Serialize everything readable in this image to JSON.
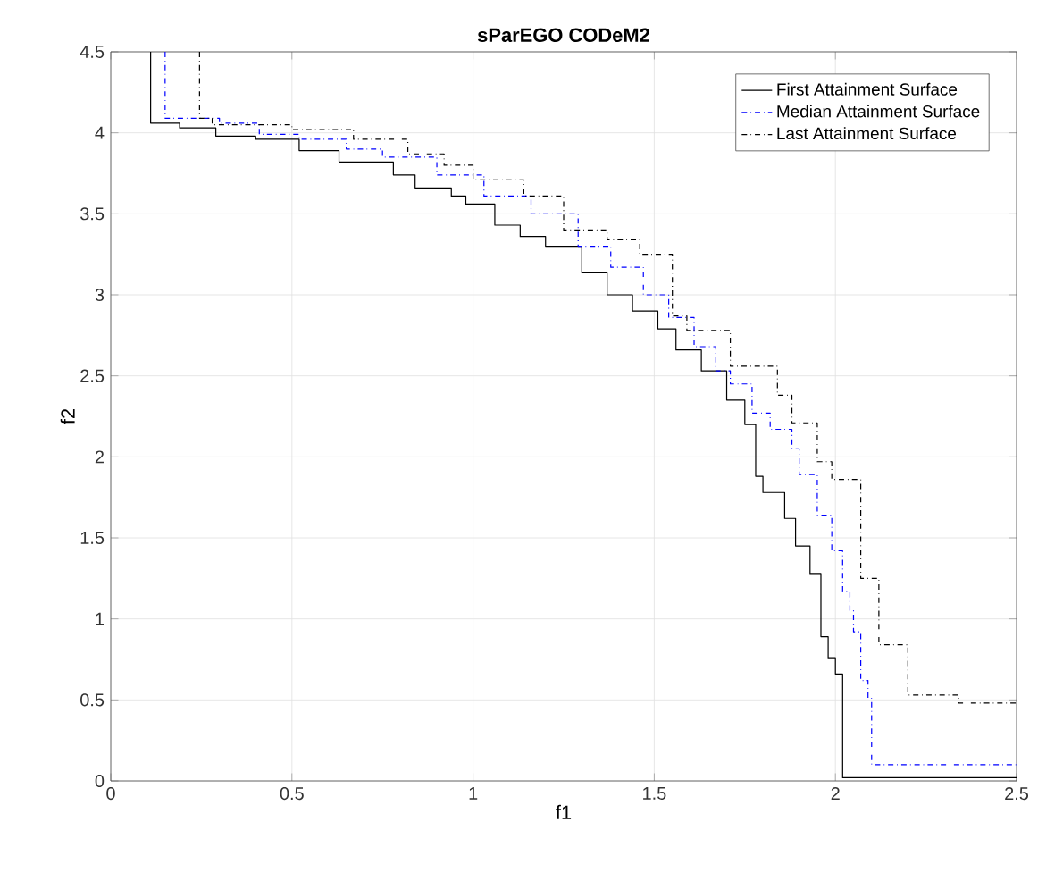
{
  "chart_data": {
    "type": "step",
    "title": "sParEGO CODeM2",
    "xlabel": "f1",
    "ylabel": "f2",
    "xlim": [
      0,
      2.5
    ],
    "ylim": [
      0,
      4.5
    ],
    "xticks": [
      0,
      0.5,
      1,
      1.5,
      2,
      2.5
    ],
    "yticks": [
      0,
      0.5,
      1,
      1.5,
      2,
      2.5,
      3,
      3.5,
      4,
      4.5
    ],
    "grid": true,
    "legend": "top right",
    "series": [
      {
        "name": "First Attainment Surface",
        "color": "#000000",
        "line_style": "solid",
        "x": [
          0.11,
          0.11,
          0.19,
          0.29,
          0.4,
          0.52,
          0.63,
          0.78,
          0.84,
          0.94,
          0.98,
          1.06,
          1.13,
          1.2,
          1.3,
          1.37,
          1.44,
          1.51,
          1.56,
          1.63,
          1.7,
          1.75,
          1.78,
          1.8,
          1.86,
          1.89,
          1.93,
          1.96,
          1.98,
          2.0,
          2.02,
          2.5
        ],
        "values": [
          4.5,
          4.06,
          4.03,
          3.98,
          3.96,
          3.89,
          3.82,
          3.74,
          3.66,
          3.61,
          3.56,
          3.43,
          3.36,
          3.3,
          3.14,
          3.0,
          2.9,
          2.79,
          2.66,
          2.53,
          2.35,
          2.2,
          1.88,
          1.78,
          1.62,
          1.45,
          1.28,
          0.89,
          0.76,
          0.66,
          0.02,
          0.02
        ]
      },
      {
        "name": "Median Attainment Surface",
        "color": "#0000ff",
        "line_style": "dashdot",
        "x": [
          0.15,
          0.15,
          0.3,
          0.41,
          0.52,
          0.65,
          0.75,
          0.9,
          1.03,
          1.16,
          1.29,
          1.38,
          1.47,
          1.54,
          1.61,
          1.67,
          1.71,
          1.77,
          1.82,
          1.88,
          1.9,
          1.95,
          1.99,
          2.02,
          2.04,
          2.05,
          2.07,
          2.09,
          2.1,
          2.5
        ],
        "values": [
          4.5,
          4.09,
          4.06,
          3.99,
          3.96,
          3.9,
          3.85,
          3.74,
          3.61,
          3.5,
          3.3,
          3.17,
          3.0,
          2.86,
          2.68,
          2.53,
          2.45,
          2.27,
          2.17,
          2.05,
          1.89,
          1.64,
          1.42,
          1.17,
          1.05,
          0.92,
          0.62,
          0.51,
          0.1,
          0.1
        ]
      },
      {
        "name": "Last Attainment Surface",
        "color": "#000000",
        "line_style": "dashdot",
        "x": [
          0.245,
          0.245,
          0.28,
          0.5,
          0.67,
          0.82,
          0.92,
          1.0,
          1.14,
          1.25,
          1.37,
          1.46,
          1.55,
          1.59,
          1.71,
          1.84,
          1.88,
          1.95,
          1.99,
          2.07,
          2.12,
          2.2,
          2.34,
          2.5
        ],
        "values": [
          4.5,
          4.09,
          4.05,
          4.02,
          3.96,
          3.87,
          3.8,
          3.71,
          3.61,
          3.4,
          3.34,
          3.25,
          2.87,
          2.78,
          2.56,
          2.38,
          2.21,
          1.97,
          1.86,
          1.25,
          0.84,
          0.53,
          0.48,
          0.48
        ]
      }
    ]
  }
}
